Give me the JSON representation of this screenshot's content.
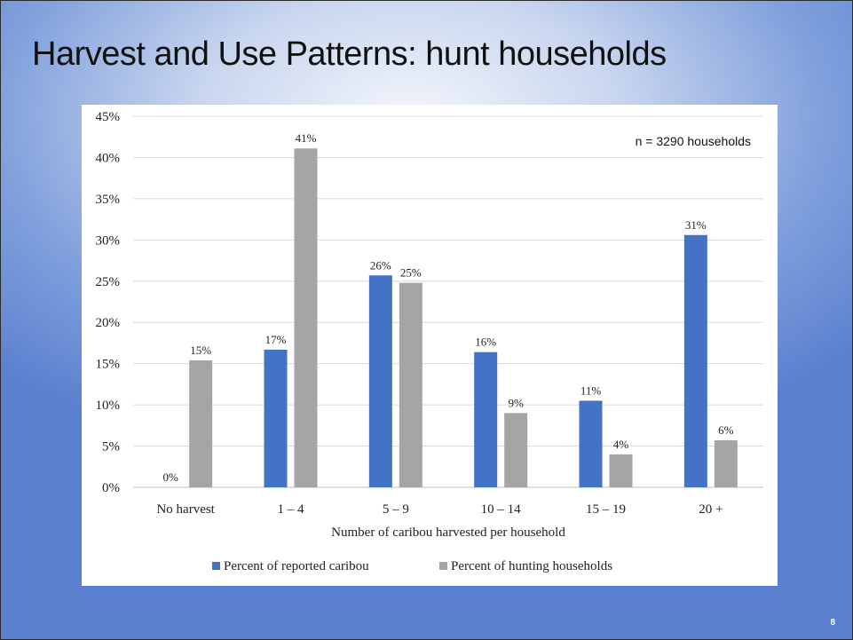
{
  "slide": {
    "title": "Harvest and Use Patterns: hunt households",
    "page_number": "8"
  },
  "chart_data": {
    "type": "bar",
    "categories": [
      "No harvest",
      "1 – 4",
      "5 – 9",
      "10 – 14",
      "15 – 19",
      "20 +"
    ],
    "series": [
      {
        "name": "Percent of reported caribou",
        "color": "#4472c4",
        "values": [
          0,
          16.7,
          25.7,
          16.4,
          10.5,
          30.6
        ],
        "labels": [
          "0%",
          "17%",
          "26%",
          "16%",
          "11%",
          "31%"
        ]
      },
      {
        "name": "Percent of hunting households",
        "color": "#a5a5a5",
        "values": [
          15.4,
          41.1,
          24.8,
          9.0,
          4.0,
          5.7
        ],
        "labels": [
          "15%",
          "41%",
          "25%",
          "9%",
          "4%",
          "6%"
        ]
      }
    ],
    "ylim": [
      0,
      45
    ],
    "yticks": [
      "0%",
      "5%",
      "10%",
      "15%",
      "20%",
      "25%",
      "30%",
      "35%",
      "40%",
      "45%"
    ],
    "xlabel": "Number of caribou harvested per household",
    "ylabel": "",
    "annotation": "n = 3290 households",
    "grid": true,
    "legend_position": "bottom"
  }
}
